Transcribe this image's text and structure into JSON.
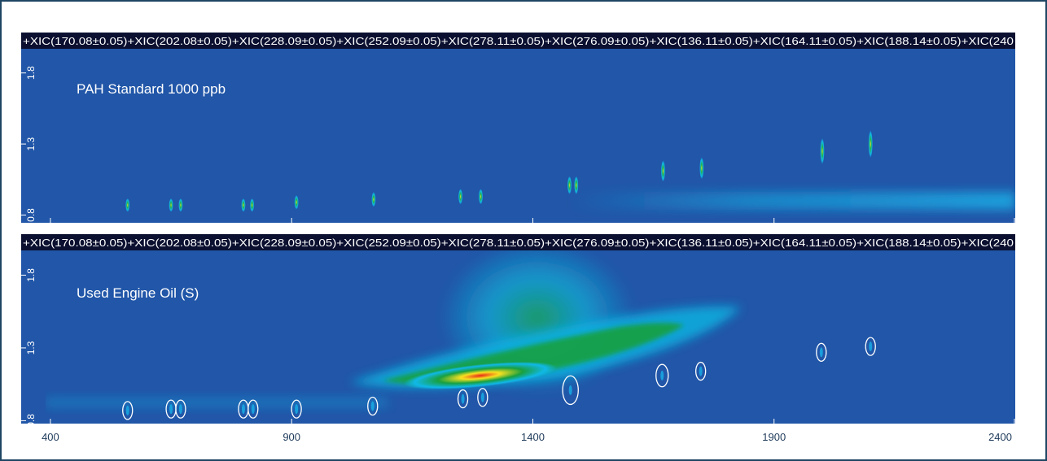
{
  "chart_data": [
    {
      "type": "heatmap",
      "title": "PAH Standard 1000 ppb",
      "header": "+XIC(170.08±0.05)+XIC(202.08±0.05)+XIC(228.09±0.05)+XIC(252.09±0.05)+XIC(278.11±0.05)+XIC(276.09±0.05)+XIC(136.11±0.05)+XIC(164.11±0.05)+XIC(188.14±0.05)+XIC(240",
      "xlim": [
        390,
        2400
      ],
      "ylim": [
        0.78,
        1.97
      ],
      "xticks": [
        "400",
        "900",
        "1400",
        "1900",
        "2400"
      ],
      "yticks": [
        "0.8",
        "1.3",
        "1.8"
      ],
      "peaks": [
        {
          "x": 560,
          "y": 0.87
        },
        {
          "x": 650,
          "y": 0.87
        },
        {
          "x": 670,
          "y": 0.87
        },
        {
          "x": 800,
          "y": 0.87
        },
        {
          "x": 818,
          "y": 0.87
        },
        {
          "x": 910,
          "y": 0.89
        },
        {
          "x": 1070,
          "y": 0.91
        },
        {
          "x": 1250,
          "y": 0.93
        },
        {
          "x": 1292,
          "y": 0.93
        },
        {
          "x": 1476,
          "y": 1.01
        },
        {
          "x": 1490,
          "y": 1.01
        },
        {
          "x": 1670,
          "y": 1.11
        },
        {
          "x": 1750,
          "y": 1.13
        },
        {
          "x": 2000,
          "y": 1.25
        },
        {
          "x": 2100,
          "y": 1.3
        }
      ]
    },
    {
      "type": "heatmap",
      "title": "Used Engine Oil (S)",
      "header": "+XIC(170.08±0.05)+XIC(202.08±0.05)+XIC(228.09±0.05)+XIC(252.09±0.05)+XIC(278.11±0.05)+XIC(276.09±0.05)+XIC(136.11±0.05)+XIC(164.11±0.05)+XIC(188.14±0.05)+XIC(240",
      "xlim": [
        390,
        2400
      ],
      "ylim": [
        0.78,
        1.97
      ],
      "xticks": [
        "400",
        "900",
        "1400",
        "1900",
        "2400"
      ],
      "yticks": [
        "0.8",
        "1.3",
        "1.8"
      ],
      "circled_peaks": [
        {
          "x": 560,
          "y": 0.87
        },
        {
          "x": 650,
          "y": 0.88
        },
        {
          "x": 670,
          "y": 0.88
        },
        {
          "x": 800,
          "y": 0.88
        },
        {
          "x": 820,
          "y": 0.88
        },
        {
          "x": 910,
          "y": 0.88
        },
        {
          "x": 1068,
          "y": 0.9
        },
        {
          "x": 1255,
          "y": 0.95
        },
        {
          "x": 1296,
          "y": 0.96
        },
        {
          "x": 1478,
          "y": 1.01
        },
        {
          "x": 1668,
          "y": 1.11
        },
        {
          "x": 1748,
          "y": 1.14
        },
        {
          "x": 1998,
          "y": 1.27
        },
        {
          "x": 2100,
          "y": 1.31
        }
      ]
    }
  ],
  "colors": {
    "background": "#2156a8",
    "header": "#0b1030",
    "frame": "#1e4663",
    "hot": "#e82818",
    "warm": "#f8e020",
    "mid": "#18a040",
    "cool": "#10b8e8"
  }
}
